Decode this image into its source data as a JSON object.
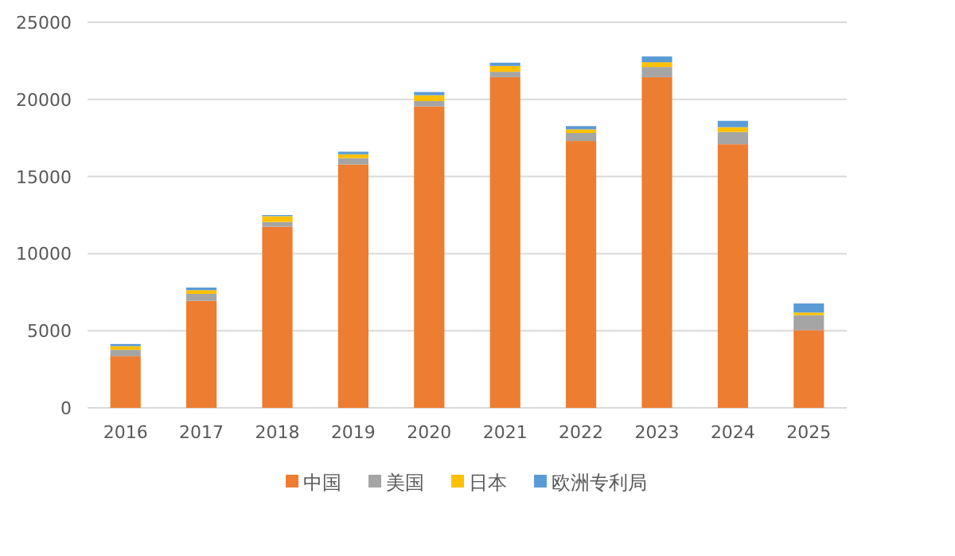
{
  "chart_data": {
    "type": "bar",
    "stacked": true,
    "categories": [
      "2016",
      "2017",
      "2018",
      "2019",
      "2020",
      "2021",
      "2022",
      "2023",
      "2024",
      "2025"
    ],
    "series": [
      {
        "name": "中国",
        "color": "#ed7d31",
        "values": [
          3350,
          6940,
          11740,
          15780,
          19540,
          21440,
          17300,
          21440,
          17090,
          5040
        ]
      },
      {
        "name": "美国",
        "color": "#a5a5a5",
        "values": [
          410,
          450,
          310,
          410,
          350,
          350,
          520,
          660,
          800,
          970
        ]
      },
      {
        "name": "日本",
        "color": "#ffc000",
        "values": [
          240,
          240,
          380,
          250,
          380,
          380,
          240,
          310,
          310,
          170
        ]
      },
      {
        "name": "欧洲专利局",
        "color": "#5b9bd5",
        "values": [
          140,
          170,
          70,
          170,
          210,
          210,
          210,
          380,
          410,
          590
        ]
      }
    ],
    "ylim": [
      0,
      25000
    ],
    "yticks": [
      0,
      5000,
      10000,
      15000,
      20000,
      25000
    ],
    "grid": "y",
    "legend": "bottom"
  }
}
